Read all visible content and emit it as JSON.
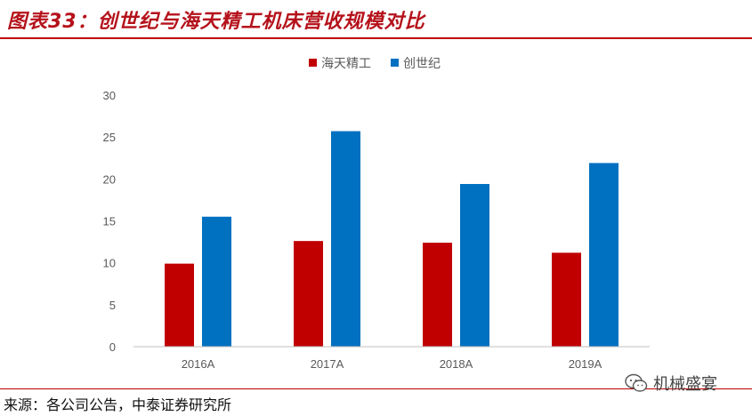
{
  "header": {
    "title": "图表33：创世纪与海天精工机床营收规模对比"
  },
  "footer": {
    "source": "来源：各公司公告，中泰证券研究所"
  },
  "watermark": {
    "text": "机械盛宴",
    "icon": "wechat-icon"
  },
  "colors": {
    "title_red": "#b5121b",
    "series_red": "#c00000",
    "series_blue": "#0070c0",
    "axis": "#bfbfbf"
  },
  "chart_data": {
    "type": "bar",
    "categories": [
      "2016A",
      "2017A",
      "2018A",
      "2019A"
    ],
    "series": [
      {
        "name": "海天精工",
        "values": [
          9.9,
          12.6,
          12.4,
          11.2
        ]
      },
      {
        "name": "创世纪",
        "values": [
          15.5,
          25.7,
          19.4,
          21.9
        ]
      }
    ],
    "ylim": [
      0,
      30
    ],
    "yticks": [
      0,
      5,
      10,
      15,
      20,
      25,
      30
    ],
    "grid": false,
    "legend": "top-center"
  }
}
